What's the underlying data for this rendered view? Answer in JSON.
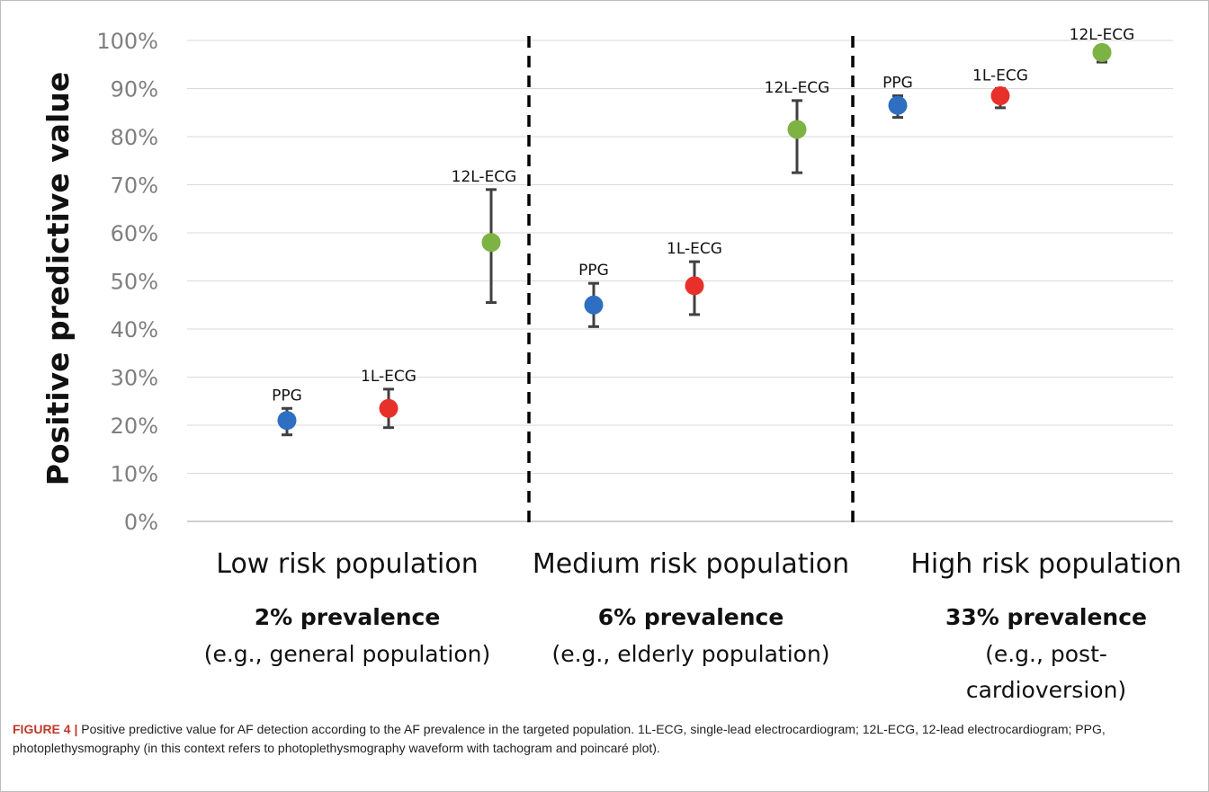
{
  "chart_data": {
    "type": "scatter",
    "ylabel": "Positive predictive value",
    "xlabel": "",
    "ylim": [
      0,
      100
    ],
    "y_ticks": [
      "0%",
      "10%",
      "20%",
      "30%",
      "40%",
      "50%",
      "60%",
      "70%",
      "80%",
      "90%",
      "100%"
    ],
    "grid": "horizontal",
    "colors": {
      "PPG": "#2e6fc1",
      "1L-ECG": "#e8302a",
      "12L-ECG": "#7cb342",
      "errorbar": "#404040",
      "divider": "#000000",
      "grid": "#d9d9d9"
    },
    "groups": [
      {
        "title": "Low risk population",
        "prevalence": "2% prevalence",
        "example_lines": [
          "(e.g., general population)"
        ],
        "points": [
          {
            "label": "PPG",
            "value": 21,
            "low": 18,
            "high": 23.5
          },
          {
            "label": "1L-ECG",
            "value": 23.5,
            "low": 19.5,
            "high": 27.5
          },
          {
            "label": "12L-ECG",
            "value": 58,
            "low": 45.5,
            "high": 69
          }
        ]
      },
      {
        "title": "Medium risk population",
        "prevalence": "6% prevalence",
        "example_lines": [
          "(e.g., elderly population)"
        ],
        "points": [
          {
            "label": "PPG",
            "value": 45,
            "low": 40.5,
            "high": 49.5
          },
          {
            "label": "1L-ECG",
            "value": 49,
            "low": 43,
            "high": 54
          },
          {
            "label": "12L-ECG",
            "value": 81.5,
            "low": 72.5,
            "high": 87.5
          }
        ]
      },
      {
        "title": "High risk population",
        "prevalence": "33% prevalence",
        "example_lines": [
          "(e.g., post-",
          "cardioversion)"
        ],
        "points": [
          {
            "label": "PPG",
            "value": 86.5,
            "low": 84,
            "high": 88.5
          },
          {
            "label": "1L-ECG",
            "value": 88.5,
            "low": 86,
            "high": 90
          },
          {
            "label": "12L-ECG",
            "value": 97.5,
            "low": 95.5,
            "high": 98.5
          }
        ]
      }
    ]
  },
  "caption": {
    "figure_label": "FIGURE 4 |",
    "text": "Positive predictive value for AF detection according to the AF prevalence in the targeted population. 1L-ECG, single-lead electrocardiogram; 12L-ECG, 12-lead electrocardiogram; PPG, photoplethysmography (in this context refers to photoplethysmography waveform with tachogram and poincaré plot)."
  }
}
